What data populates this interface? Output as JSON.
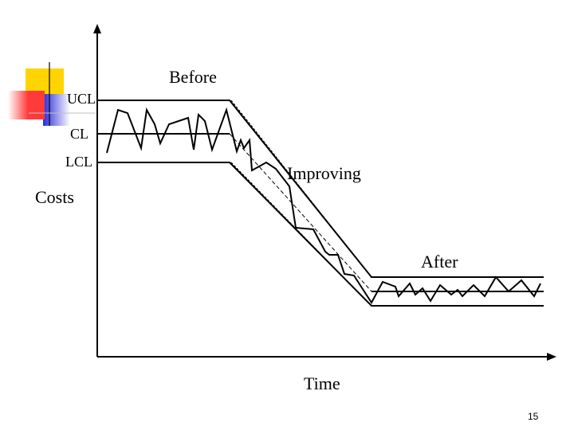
{
  "labels": {
    "before": "Before",
    "ucl": "UCL",
    "cl": "CL",
    "lcl": "LCL",
    "costs": "Costs",
    "improving": "Improving",
    "after": "After",
    "time": "Time"
  },
  "slide_number": "15",
  "colors": {
    "line": "#000000",
    "logo_yellow": "#ffd400",
    "logo_red": "#ff3a3a",
    "logo_blue": "#2a2adb"
  }
}
